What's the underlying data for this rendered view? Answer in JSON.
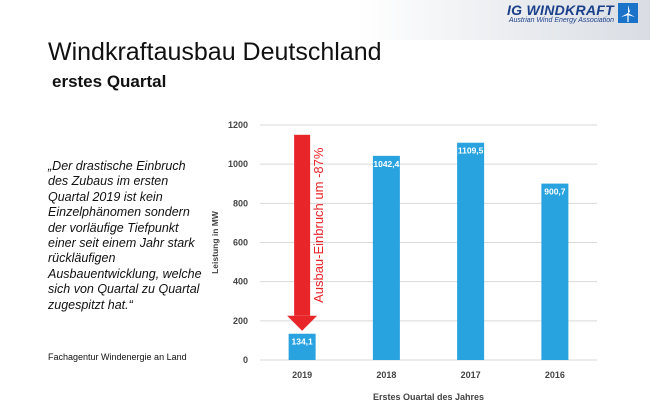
{
  "header": {
    "logo_name": "IG WINDKRAFT",
    "logo_tagline": "Austrian Wind Energy Association"
  },
  "slide": {
    "title": "Windkraftausbau Deutschland",
    "subtitle": "erstes Quartal",
    "quote": "„Der drastische Einbruch des Zubaus im ersten Quartal 2019 ist kein Einzelphänomen sondern der vorläufige Tiefpunkt einer seit einem Jahr stark rückläufigen Ausbauentwicklung, welche sich von Quartal zu Quartal zugespitzt hat.“",
    "quote_source": "Fachagentur Windenergie an Land"
  },
  "chart_data": {
    "type": "bar",
    "title": "",
    "xlabel": "Erstes Quartal des Jahres",
    "ylabel": "Leistung in MW",
    "categories": [
      "2019",
      "2018",
      "2017",
      "2016"
    ],
    "values": [
      134.1,
      1042.4,
      1109.5,
      900.7
    ],
    "data_labels": [
      "134,1",
      "1042,4",
      "1109,5",
      "900,7"
    ],
    "ylim": [
      0,
      1200
    ],
    "yticks": [
      0,
      200,
      400,
      600,
      800,
      1000,
      1200
    ],
    "grid": true,
    "bar_color": "#29a3e0",
    "annotation": {
      "text": "Ausbau-Einbruch um -87%",
      "color": "#e8262a",
      "category": "2019"
    }
  }
}
